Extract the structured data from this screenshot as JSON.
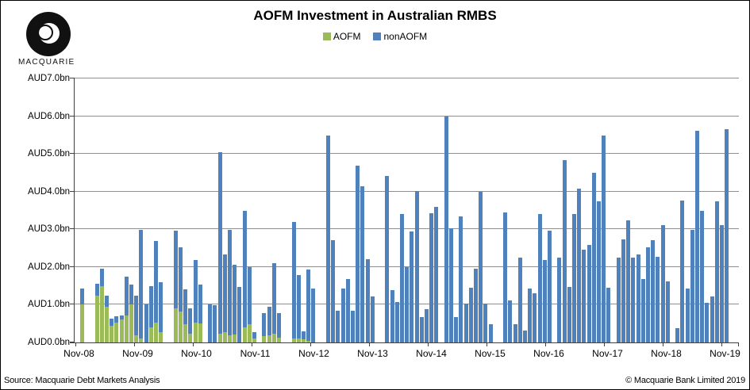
{
  "header": {
    "title": "AOFM Investment in Australian RMBS",
    "logo_text": "MACQUARIE"
  },
  "legend": {
    "items": [
      {
        "label": "AOFM",
        "color": "#9bbb59"
      },
      {
        "label": "nonAOFM",
        "color": "#4f81bd"
      }
    ]
  },
  "footer": {
    "source": "Source: Macquarie Debt Markets Analysis",
    "copyright": "© Macquarie Bank Limited 2019"
  },
  "chart_data": {
    "type": "bar",
    "stacked": true,
    "title": "AOFM Investment in Australian RMBS",
    "xlabel": "",
    "ylabel": "AUD bn",
    "ylim": [
      0,
      7
    ],
    "grid": true,
    "legend_position": "top-center",
    "y_ticks": [
      "AUD0.0bn",
      "AUD1.0bn",
      "AUD2.0bn",
      "AUD3.0bn",
      "AUD4.0bn",
      "AUD5.0bn",
      "AUD6.0bn",
      "AUD7.0bn"
    ],
    "x_ticks": [
      "Nov-08",
      "Nov-09",
      "Nov-10",
      "Nov-11",
      "Nov-12",
      "Nov-13",
      "Nov-14",
      "Nov-15",
      "Nov-16",
      "Nov-17",
      "Nov-18",
      "Nov-19"
    ],
    "series_names": [
      "AOFM",
      "nonAOFM"
    ],
    "series_colors": {
      "AOFM": "#9bbb59",
      "nonAOFM": "#4f81bd"
    },
    "bars": [
      {
        "month": "Nov-08",
        "aofm": 1.0,
        "non_aofm": 0.42
      },
      {
        "month": "Feb-09",
        "aofm": 1.25,
        "non_aofm": 0.3
      },
      {
        "month": "Mar-09",
        "aofm": 1.5,
        "non_aofm": 0.45
      },
      {
        "month": "Apr-09",
        "aofm": 0.95,
        "non_aofm": 0.3
      },
      {
        "month": "May-09",
        "aofm": 0.45,
        "non_aofm": 0.18
      },
      {
        "month": "Jun-09",
        "aofm": 0.53,
        "non_aofm": 0.16
      },
      {
        "month": "Jul-09",
        "aofm": 0.62,
        "non_aofm": 0.1
      },
      {
        "month": "Aug-09",
        "aofm": 0.72,
        "non_aofm": 1.02
      },
      {
        "month": "Sep-09",
        "aofm": 1.0,
        "non_aofm": 0.53
      },
      {
        "month": "Oct-09",
        "aofm": 0.18,
        "non_aofm": 1.07
      },
      {
        "month": "Nov-09",
        "aofm": 0.1,
        "non_aofm": 2.88
      },
      {
        "month": "Dec-09",
        "aofm": 0.0,
        "non_aofm": 1.0
      },
      {
        "month": "Jan-10",
        "aofm": 0.39,
        "non_aofm": 1.1
      },
      {
        "month": "Feb-10",
        "aofm": 0.53,
        "non_aofm": 2.17
      },
      {
        "month": "Mar-10",
        "aofm": 0.28,
        "non_aofm": 1.32
      },
      {
        "month": "Jun-10",
        "aofm": 0.91,
        "non_aofm": 2.06
      },
      {
        "month": "Jul-10",
        "aofm": 0.83,
        "non_aofm": 1.7
      },
      {
        "month": "Aug-10",
        "aofm": 0.48,
        "non_aofm": 0.92
      },
      {
        "month": "Sep-10",
        "aofm": 0.23,
        "non_aofm": 0.67
      },
      {
        "month": "Oct-10",
        "aofm": 0.53,
        "non_aofm": 1.65
      },
      {
        "month": "Nov-10",
        "aofm": 0.51,
        "non_aofm": 1.02
      },
      {
        "month": "Jan-11",
        "aofm": 0.0,
        "non_aofm": 1.0
      },
      {
        "month": "Feb-11",
        "aofm": 0.0,
        "non_aofm": 0.98
      },
      {
        "month": "Mar-11",
        "aofm": 0.23,
        "non_aofm": 4.82
      },
      {
        "month": "Apr-11",
        "aofm": 0.28,
        "non_aofm": 2.05
      },
      {
        "month": "May-11",
        "aofm": 0.2,
        "non_aofm": 2.78
      },
      {
        "month": "Jun-11",
        "aofm": 0.22,
        "non_aofm": 1.84
      },
      {
        "month": "Jul-11",
        "aofm": 0.0,
        "non_aofm": 1.48
      },
      {
        "month": "Aug-11",
        "aofm": 0.39,
        "non_aofm": 3.1
      },
      {
        "month": "Sep-11",
        "aofm": 0.49,
        "non_aofm": 1.5
      },
      {
        "month": "Oct-11",
        "aofm": 0.11,
        "non_aofm": 0.17
      },
      {
        "month": "Dec-11",
        "aofm": 0.16,
        "non_aofm": 0.62
      },
      {
        "month": "Jan-12",
        "aofm": 0.2,
        "non_aofm": 0.75
      },
      {
        "month": "Feb-12",
        "aofm": 0.23,
        "non_aofm": 1.87
      },
      {
        "month": "Mar-12",
        "aofm": 0.13,
        "non_aofm": 0.65
      },
      {
        "month": "Jun-12",
        "aofm": 0.1,
        "non_aofm": 3.09
      },
      {
        "month": "Jul-12",
        "aofm": 0.1,
        "non_aofm": 1.69
      },
      {
        "month": "Aug-12",
        "aofm": 0.08,
        "non_aofm": 0.22
      },
      {
        "month": "Sep-12",
        "aofm": 0.05,
        "non_aofm": 1.88
      },
      {
        "month": "Oct-12",
        "aofm": 0.0,
        "non_aofm": 1.42
      },
      {
        "month": "Jan-13",
        "aofm": 0,
        "non_aofm": 5.49
      },
      {
        "month": "Feb-13",
        "aofm": 0,
        "non_aofm": 2.72
      },
      {
        "month": "Mar-13",
        "aofm": 0,
        "non_aofm": 0.84
      },
      {
        "month": "Apr-13",
        "aofm": 0,
        "non_aofm": 1.44
      },
      {
        "month": "May-13",
        "aofm": 0,
        "non_aofm": 1.68
      },
      {
        "month": "Jun-13",
        "aofm": 0,
        "non_aofm": 0.84
      },
      {
        "month": "Jul-13",
        "aofm": 0,
        "non_aofm": 4.69
      },
      {
        "month": "Aug-13",
        "aofm": 0,
        "non_aofm": 4.15
      },
      {
        "month": "Sep-13",
        "aofm": 0,
        "non_aofm": 2.21
      },
      {
        "month": "Oct-13",
        "aofm": 0,
        "non_aofm": 1.21
      },
      {
        "month": "Jan-14",
        "aofm": 0,
        "non_aofm": 4.41
      },
      {
        "month": "Feb-14",
        "aofm": 0,
        "non_aofm": 1.39
      },
      {
        "month": "Mar-14",
        "aofm": 0,
        "non_aofm": 1.08
      },
      {
        "month": "Apr-14",
        "aofm": 0,
        "non_aofm": 3.41
      },
      {
        "month": "May-14",
        "aofm": 0,
        "non_aofm": 1.99
      },
      {
        "month": "Jun-14",
        "aofm": 0,
        "non_aofm": 2.94
      },
      {
        "month": "Jul-14",
        "aofm": 0,
        "non_aofm": 4.02
      },
      {
        "month": "Aug-14",
        "aofm": 0,
        "non_aofm": 0.68
      },
      {
        "month": "Sep-14",
        "aofm": 0,
        "non_aofm": 0.89
      },
      {
        "month": "Oct-14",
        "aofm": 0,
        "non_aofm": 3.42
      },
      {
        "month": "Nov-14",
        "aofm": 0,
        "non_aofm": 3.6
      },
      {
        "month": "Jan-15",
        "aofm": 0,
        "non_aofm": 6.0
      },
      {
        "month": "Feb-15",
        "aofm": 0,
        "non_aofm": 3.02
      },
      {
        "month": "Mar-15",
        "aofm": 0,
        "non_aofm": 0.68
      },
      {
        "month": "Apr-15",
        "aofm": 0,
        "non_aofm": 3.35
      },
      {
        "month": "May-15",
        "aofm": 0,
        "non_aofm": 1.04
      },
      {
        "month": "Jun-15",
        "aofm": 0,
        "non_aofm": 1.46
      },
      {
        "month": "Jul-15",
        "aofm": 0,
        "non_aofm": 1.96
      },
      {
        "month": "Aug-15",
        "aofm": 0,
        "non_aofm": 4.0
      },
      {
        "month": "Sep-15",
        "aofm": 0,
        "non_aofm": 1.02
      },
      {
        "month": "Oct-15",
        "aofm": 0,
        "non_aofm": 0.49
      },
      {
        "month": "Jan-16",
        "aofm": 0,
        "non_aofm": 3.44
      },
      {
        "month": "Feb-16",
        "aofm": 0,
        "non_aofm": 1.12
      },
      {
        "month": "Mar-16",
        "aofm": 0,
        "non_aofm": 0.49
      },
      {
        "month": "Apr-16",
        "aofm": 0,
        "non_aofm": 2.24
      },
      {
        "month": "May-16",
        "aofm": 0,
        "non_aofm": 0.32
      },
      {
        "month": "Jun-16",
        "aofm": 0,
        "non_aofm": 1.44
      },
      {
        "month": "Jul-16",
        "aofm": 0,
        "non_aofm": 1.31
      },
      {
        "month": "Aug-16",
        "aofm": 0,
        "non_aofm": 3.4
      },
      {
        "month": "Sep-16",
        "aofm": 0,
        "non_aofm": 2.19
      },
      {
        "month": "Oct-16",
        "aofm": 0,
        "non_aofm": 2.97
      },
      {
        "month": "Dec-16",
        "aofm": 0,
        "non_aofm": 2.24
      },
      {
        "month": "Jan-17",
        "aofm": 0,
        "non_aofm": 4.84
      },
      {
        "month": "Feb-17",
        "aofm": 0,
        "non_aofm": 1.47
      },
      {
        "month": "Mar-17",
        "aofm": 0,
        "non_aofm": 3.41
      },
      {
        "month": "Apr-17",
        "aofm": 0,
        "non_aofm": 4.08
      },
      {
        "month": "May-17",
        "aofm": 0,
        "non_aofm": 2.45
      },
      {
        "month": "Jun-17",
        "aofm": 0,
        "non_aofm": 2.59
      },
      {
        "month": "Jul-17",
        "aofm": 0,
        "non_aofm": 4.49
      },
      {
        "month": "Aug-17",
        "aofm": 0,
        "non_aofm": 3.74
      },
      {
        "month": "Sep-17",
        "aofm": 0,
        "non_aofm": 5.48
      },
      {
        "month": "Oct-17",
        "aofm": 0,
        "non_aofm": 1.46
      },
      {
        "month": "Dec-17",
        "aofm": 0,
        "non_aofm": 2.24
      },
      {
        "month": "Jan-18",
        "aofm": 0,
        "non_aofm": 2.73
      },
      {
        "month": "Feb-18",
        "aofm": 0,
        "non_aofm": 3.24
      },
      {
        "month": "Mar-18",
        "aofm": 0,
        "non_aofm": 2.24
      },
      {
        "month": "Apr-18",
        "aofm": 0,
        "non_aofm": 2.33
      },
      {
        "month": "May-18",
        "aofm": 0,
        "non_aofm": 1.68
      },
      {
        "month": "Jun-18",
        "aofm": 0,
        "non_aofm": 2.52
      },
      {
        "month": "Jul-18",
        "aofm": 0,
        "non_aofm": 2.72
      },
      {
        "month": "Aug-18",
        "aofm": 0,
        "non_aofm": 2.28
      },
      {
        "month": "Sep-18",
        "aofm": 0,
        "non_aofm": 3.12
      },
      {
        "month": "Oct-18",
        "aofm": 0,
        "non_aofm": 1.62
      },
      {
        "month": "Dec-18",
        "aofm": 0,
        "non_aofm": 0.37
      },
      {
        "month": "Jan-19",
        "aofm": 0,
        "non_aofm": 3.76
      },
      {
        "month": "Feb-19",
        "aofm": 0,
        "non_aofm": 1.44
      },
      {
        "month": "Mar-19",
        "aofm": 0,
        "non_aofm": 2.99
      },
      {
        "month": "Apr-19",
        "aofm": 0,
        "non_aofm": 5.62
      },
      {
        "month": "May-19",
        "aofm": 0,
        "non_aofm": 3.49
      },
      {
        "month": "Jun-19",
        "aofm": 0,
        "non_aofm": 1.05
      },
      {
        "month": "Jul-19",
        "aofm": 0,
        "non_aofm": 1.23
      },
      {
        "month": "Aug-19",
        "aofm": 0,
        "non_aofm": 3.74
      },
      {
        "month": "Sep-19",
        "aofm": 0,
        "non_aofm": 3.11
      },
      {
        "month": "Oct-19",
        "aofm": 0,
        "non_aofm": 5.65
      }
    ]
  }
}
